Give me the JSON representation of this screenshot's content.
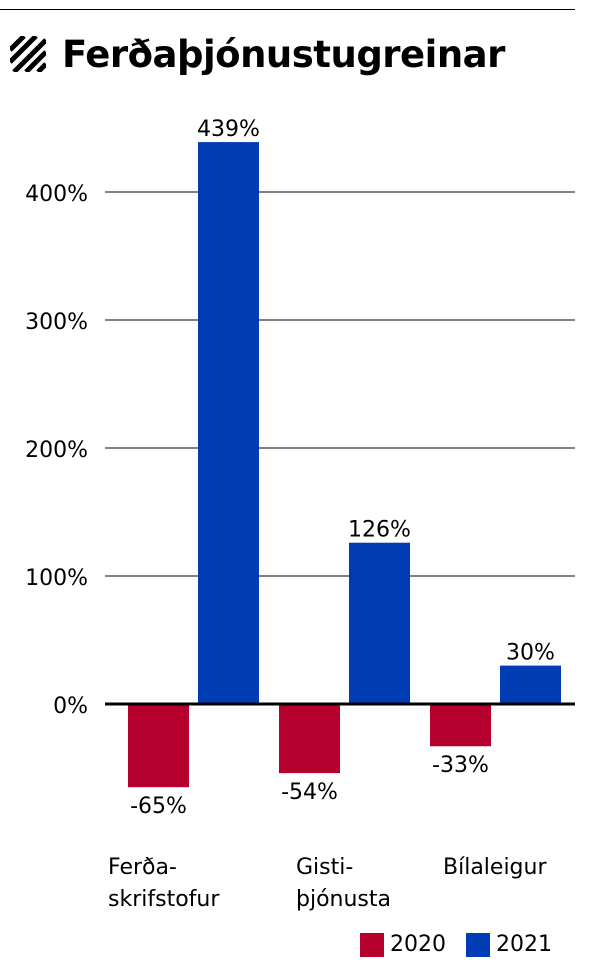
{
  "title": "Ferðaþjónustugreinar",
  "chart_data": {
    "type": "bar",
    "title": "Ferðaþjónustugreinar",
    "categories": [
      [
        "Ferða-",
        "skrifstofur"
      ],
      [
        "Gisti-",
        "þjónusta"
      ],
      [
        "Bílaleigur"
      ]
    ],
    "series": [
      {
        "name": "2020",
        "color": "#b5002e",
        "values": [
          -65,
          -54,
          -33
        ],
        "labels": [
          "-65%",
          "-54%",
          "-33%"
        ]
      },
      {
        "name": "2021",
        "color": "#003db5",
        "values": [
          439,
          126,
          30
        ],
        "labels": [
          "439%",
          "126%",
          "30%"
        ]
      }
    ],
    "yticks": [
      0,
      100,
      200,
      300,
      400
    ],
    "ytick_labels": [
      "0%",
      "100%",
      "200%",
      "300%",
      "400%"
    ],
    "ylim": [
      -80,
      460
    ],
    "grid": true,
    "legend_position": "bottom-right"
  }
}
